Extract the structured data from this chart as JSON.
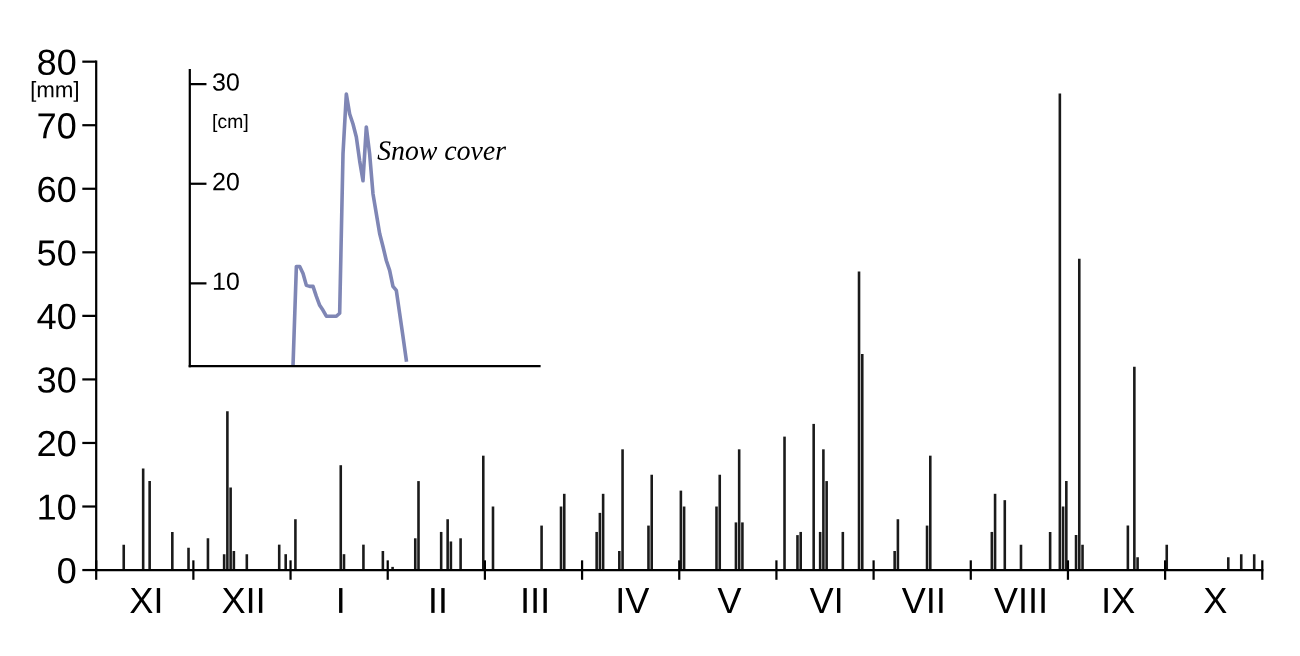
{
  "chart_data": [
    {
      "type": "bar",
      "ylabel": "[mm]",
      "categories": [
        null,
        null,
        null,
        null,
        null,
        null,
        null,
        null,
        null,
        null,
        null,
        null,
        null,
        null,
        null,
        "XI",
        null,
        null,
        null,
        null,
        null,
        null,
        null,
        null,
        null,
        null,
        null,
        null,
        null,
        null,
        null,
        null,
        null,
        null,
        null,
        null,
        null,
        null,
        null,
        null,
        null,
        null,
        null,
        null,
        null,
        "XII",
        null,
        null,
        null,
        null,
        null,
        null,
        null,
        null,
        null,
        null,
        null,
        null,
        null,
        null,
        null,
        null,
        null,
        null,
        null,
        null,
        null,
        null,
        null,
        null,
        null,
        null,
        null,
        null,
        null,
        "I",
        null,
        null,
        null,
        null,
        null,
        null,
        null,
        null,
        null,
        null,
        null,
        null,
        null,
        null,
        null,
        null,
        null,
        null,
        null,
        null,
        null,
        null,
        null,
        null,
        null,
        null,
        null,
        null,
        null,
        "II",
        null,
        null,
        null,
        null,
        null,
        null,
        null,
        null,
        null,
        null,
        null,
        null,
        null,
        null,
        null,
        null,
        null,
        null,
        null,
        null,
        null,
        null,
        null,
        null,
        null,
        null,
        null,
        null,
        null,
        "III",
        null,
        null,
        null,
        null,
        null,
        null,
        null,
        null,
        null,
        null,
        null,
        null,
        null,
        null,
        null,
        null,
        null,
        null,
        null,
        null,
        null,
        null,
        null,
        null,
        null,
        null,
        null,
        null,
        null,
        "IV",
        null,
        null,
        null,
        null,
        null,
        null,
        null,
        null,
        null,
        null,
        null,
        null,
        null,
        null,
        null,
        null,
        null,
        null,
        null,
        null,
        null,
        null,
        null,
        null,
        null,
        null,
        null,
        null,
        null,
        "V",
        null,
        null,
        null,
        null,
        null,
        null,
        null,
        null,
        null,
        null,
        null,
        null,
        null,
        null,
        null,
        null,
        null,
        null,
        null,
        null,
        null,
        null,
        null,
        null,
        null,
        null,
        null,
        null,
        null,
        "VI",
        null,
        null,
        null,
        null,
        null,
        null,
        null,
        null,
        null,
        null,
        null,
        null,
        null,
        null,
        null,
        null,
        null,
        null,
        null,
        null,
        null,
        null,
        null,
        null,
        null,
        null,
        null,
        null,
        null,
        "VII",
        null,
        null,
        null,
        null,
        null,
        null,
        null,
        null,
        null,
        null,
        null,
        null,
        null,
        null,
        null,
        null,
        null,
        null,
        null,
        null,
        null,
        null,
        null,
        null,
        null,
        null,
        null,
        null,
        null,
        "VIII",
        null,
        null,
        null,
        null,
        null,
        null,
        null,
        null,
        null,
        null,
        null,
        null,
        null,
        null,
        null,
        null,
        null,
        null,
        null,
        null,
        null,
        null,
        null,
        null,
        null,
        null,
        null,
        null,
        null,
        "IX",
        null,
        null,
        null,
        null,
        null,
        null,
        null,
        null,
        null,
        null,
        null,
        null,
        null,
        null,
        null,
        null,
        null,
        null,
        null,
        null,
        null,
        null,
        null,
        null,
        null,
        null,
        null,
        null,
        null,
        "X",
        null,
        null,
        null,
        null,
        null,
        null,
        null,
        null,
        null,
        null,
        null,
        null,
        null,
        null
      ],
      "series": [
        {
          "color": "#1a1a1a",
          "values": [
            null,
            null,
            null,
            null,
            null,
            null,
            null,
            null,
            4,
            null,
            null,
            null,
            null,
            null,
            16,
            null,
            14,
            null,
            null,
            null,
            null,
            null,
            null,
            6,
            null,
            null,
            null,
            null,
            3.5,
            null,
            null,
            null,
            null,
            null,
            5,
            null,
            null,
            null,
            null,
            2.5,
            25,
            13,
            3,
            null,
            null,
            null,
            2.5,
            null,
            null,
            null,
            null,
            null,
            null,
            null,
            null,
            null,
            4,
            null,
            2.5,
            null,
            null,
            8,
            null,
            null,
            null,
            null,
            null,
            null,
            null,
            null,
            null,
            null,
            null,
            null,
            null,
            16.5,
            2.5,
            null,
            null,
            null,
            null,
            null,
            4,
            null,
            null,
            null,
            null,
            null,
            3,
            null,
            null,
            0.5,
            null,
            null,
            null,
            null,
            null,
            null,
            5,
            14,
            null,
            null,
            null,
            null,
            null,
            null,
            6,
            null,
            8,
            4.5,
            null,
            null,
            5,
            null,
            null,
            null,
            null,
            null,
            null,
            18,
            null,
            null,
            10,
            null,
            null,
            null,
            null,
            null,
            null,
            null,
            null,
            null,
            null,
            null,
            null,
            null,
            null,
            7,
            null,
            null,
            null,
            null,
            null,
            10,
            12,
            null,
            null,
            null,
            null,
            null,
            null,
            null,
            null,
            null,
            6,
            9,
            12,
            null,
            null,
            null,
            null,
            3,
            19,
            null,
            null,
            null,
            null,
            null,
            null,
            null,
            7,
            15,
            null,
            null,
            null,
            null,
            null,
            null,
            null,
            null,
            12.5,
            10,
            null,
            null,
            null,
            null,
            null,
            null,
            null,
            null,
            null,
            10,
            15,
            null,
            null,
            null,
            null,
            7.5,
            19,
            7.5,
            null,
            null,
            null,
            null,
            null,
            null,
            null,
            null,
            null,
            null,
            null,
            null,
            21,
            null,
            null,
            null,
            5.5,
            6,
            null,
            null,
            null,
            23,
            null,
            6,
            19,
            14,
            null,
            null,
            null,
            null,
            6,
            null,
            null,
            null,
            null,
            47,
            34,
            null,
            null,
            null,
            null,
            null,
            null,
            null,
            null,
            null,
            3,
            8,
            null,
            null,
            null,
            null,
            null,
            null,
            null,
            null,
            7,
            18,
            null,
            null,
            null,
            null,
            null,
            null,
            null,
            null,
            null,
            null,
            null,
            null,
            null,
            null,
            null,
            null,
            null,
            null,
            6,
            12,
            null,
            null,
            11,
            null,
            null,
            null,
            null,
            4,
            null,
            null,
            null,
            null,
            null,
            null,
            null,
            null,
            6,
            null,
            null,
            75,
            10,
            14,
            null,
            null,
            5.5,
            49,
            4,
            null,
            null,
            null,
            null,
            null,
            null,
            null,
            null,
            null,
            null,
            null,
            null,
            null,
            7,
            null,
            32,
            2,
            null,
            null,
            null,
            null,
            null,
            null,
            null,
            null,
            4,
            null,
            null,
            null,
            null,
            null,
            null,
            null,
            null,
            null,
            null,
            null,
            null,
            null,
            null,
            null,
            null,
            null,
            null,
            2,
            null,
            null,
            null,
            2.5,
            null,
            null,
            null,
            2.5,
            null,
            null
          ]
        }
      ],
      "ylim": [
        0,
        80
      ],
      "yticks": [
        0,
        10,
        20,
        30,
        40,
        50,
        60,
        70,
        80
      ],
      "grid": false
    },
    {
      "type": "line",
      "ylabel": "[cm]",
      "annotations": [
        "Snow cover"
      ],
      "categories": [
        null,
        null,
        null,
        null,
        null,
        null,
        null,
        null,
        null,
        null,
        null,
        null,
        null,
        null,
        null,
        null,
        null,
        null,
        null,
        null,
        null,
        null,
        null,
        null,
        null,
        null,
        null,
        null,
        null,
        null,
        null,
        null,
        null,
        null,
        null,
        null,
        null,
        null,
        null,
        null,
        null,
        null,
        null,
        null,
        null,
        null,
        null,
        null,
        null,
        null,
        null,
        null,
        null,
        null,
        null,
        null,
        null,
        null,
        null,
        null,
        null,
        null,
        null,
        null,
        null,
        null,
        null,
        null,
        null,
        null,
        null,
        null,
        null,
        null,
        null,
        null,
        null,
        null,
        null,
        null,
        null,
        null,
        null,
        null,
        null,
        null,
        null,
        null,
        null,
        null,
        null,
        null,
        null,
        null,
        null,
        null,
        null,
        null,
        null,
        null,
        null,
        null,
        null,
        null,
        null,
        null
      ],
      "series": [
        {
          "color": "#7f86b5",
          "values": [
            null,
            null,
            null,
            null,
            null,
            null,
            null,
            null,
            null,
            null,
            null,
            null,
            null,
            null,
            null,
            null,
            null,
            null,
            null,
            null,
            null,
            null,
            null,
            null,
            null,
            null,
            null,
            null,
            null,
            null,
            null,
            1.8,
            11.7,
            11.7,
            11,
            9.8,
            9.7,
            9.7,
            8.7,
            7.8,
            7.3,
            6.7,
            6.7,
            6.7,
            6.7,
            7,
            23,
            29,
            27,
            26,
            24.7,
            22.3,
            20.3,
            25.7,
            23,
            19,
            17,
            15,
            13.7,
            12.3,
            11.3,
            9.7,
            9.3,
            7,
            4.7,
            2.3,
            null,
            null,
            null,
            null,
            null,
            null,
            null,
            null,
            null,
            null,
            null,
            null,
            null,
            null,
            null,
            null,
            null,
            null,
            null,
            null,
            null,
            null,
            null,
            null,
            null,
            null,
            null,
            null,
            null,
            null,
            null,
            null,
            null,
            null,
            null,
            null,
            null,
            null,
            null,
            null
          ]
        }
      ],
      "ylim": [
        1.7,
        31.4
      ],
      "yticks": [
        10,
        20,
        30
      ],
      "tick_labels": "y",
      "grid": false,
      "marker": "none",
      "line_style": "solid"
    }
  ]
}
